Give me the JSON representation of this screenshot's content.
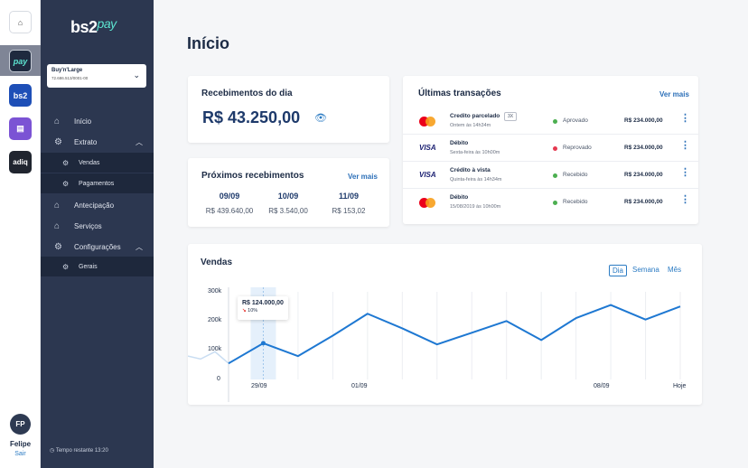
{
  "rail": {
    "apps": [
      {
        "name": "home",
        "label": "⌂"
      },
      {
        "name": "pay",
        "label": "pay"
      },
      {
        "name": "bs2",
        "label": "bs2"
      },
      {
        "name": "app",
        "label": "▤"
      },
      {
        "name": "adiq",
        "label": "adiq"
      }
    ],
    "user": {
      "initials": "FP",
      "name": "Felipe",
      "logout": "Sair"
    }
  },
  "sidebar": {
    "logo": {
      "main": "bs2",
      "accent": "pay"
    },
    "account": {
      "name": "Buy'n'Large",
      "doc": "72.686.513/0001-00"
    },
    "nav": [
      {
        "label": "Início",
        "icon": "home-icon"
      },
      {
        "label": "Extrato",
        "icon": "gear-icon"
      },
      {
        "label": "Vendas",
        "icon": "gear-icon"
      },
      {
        "label": "Pagamentos",
        "icon": "gear-icon"
      },
      {
        "label": "Antecipação",
        "icon": "home-icon"
      },
      {
        "label": "Serviços",
        "icon": "home-icon"
      },
      {
        "label": "Configurações",
        "icon": "gear-icon"
      },
      {
        "label": "Gerais",
        "icon": "gear-icon"
      }
    ],
    "timer": "Tempo restante 13:20"
  },
  "main": {
    "title": "Início",
    "recebimentos": {
      "title": "Recebimentos do dia",
      "amount": "R$ 43.250,00"
    },
    "proximos": {
      "title": "Próximos recebimentos",
      "link": "Ver mais",
      "days": [
        {
          "date": "09/09",
          "value": "R$ 439.640,00"
        },
        {
          "date": "10/09",
          "value": "R$ 3.540,00"
        },
        {
          "date": "11/09",
          "value": "R$ 153,02"
        }
      ]
    },
    "transacoes": {
      "title": "Últimas transações",
      "link": "Ver mais",
      "rows": [
        {
          "brand": "mastercard",
          "name": "Credito parcelado",
          "badge": "3X",
          "time": "Ontem às 14h34m",
          "status": "Aprovado",
          "status_color": "#4caf50",
          "amount": "R$ 234.000,00"
        },
        {
          "brand": "visa",
          "brand_label": "VISA",
          "name": "Débito",
          "badge": "",
          "time": "Sexta-feira às 10h00m",
          "status": "Reprovado",
          "status_color": "#e53950",
          "amount": "R$ 234.000,00"
        },
        {
          "brand": "visa",
          "brand_label": "VISA",
          "name": "Crédito à vista",
          "badge": "",
          "time": "Quinta-feira às 14h34m",
          "status": "Recebido",
          "status_color": "#4caf50",
          "amount": "R$ 234.000,00"
        },
        {
          "brand": "mastercard",
          "name": "Débito",
          "badge": "",
          "time": "15/08/2019 às 10h00m",
          "status": "Recebido",
          "status_color": "#4caf50",
          "amount": "R$ 234.000,00"
        }
      ]
    },
    "vendas": {
      "title": "Vendas",
      "segments": [
        "Dia",
        "Semana",
        "Mês"
      ],
      "active_segment": "Dia",
      "y_ticks": [
        "300k",
        "200k",
        "100k",
        "0"
      ],
      "x_ticks": [
        "29/09",
        "01/09",
        "08/09",
        "Hoje"
      ],
      "tooltip": {
        "value": "R$ 124.000,00",
        "change": "10%"
      }
    }
  },
  "chart_data": {
    "type": "line",
    "title": "Vendas",
    "ylim": [
      0,
      300000
    ],
    "x": [
      0,
      1,
      2,
      3,
      4,
      5,
      6,
      7,
      8,
      9,
      10,
      11,
      12,
      13
    ],
    "series": [
      {
        "values": [
          55000,
          124000,
          80000,
          150000,
          225000,
          175000,
          120000,
          160000,
          200000,
          135000,
          210000,
          255000,
          205000,
          250000
        ]
      }
    ],
    "line_color": "#1e78d2",
    "highlight_index": 1
  }
}
